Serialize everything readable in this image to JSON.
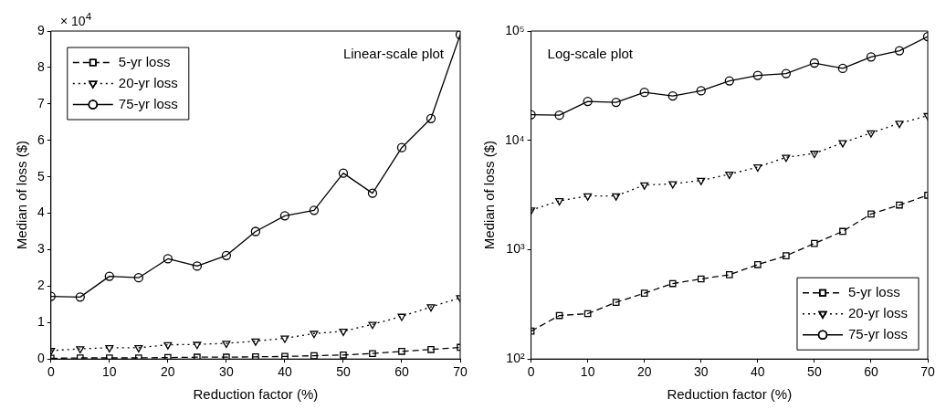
{
  "chart_data": [
    {
      "type": "line",
      "xlabel": "Reduction factor (%)",
      "ylabel": "Median of loss ($)",
      "annotations": [
        "× 10$^{4}$",
        "Linear-scale plot"
      ],
      "x": [
        0,
        5,
        10,
        15,
        20,
        25,
        30,
        35,
        40,
        45,
        50,
        55,
        60,
        65,
        70
      ],
      "series": [
        {
          "name": "5-yr loss",
          "color": "#000000",
          "marker": "square",
          "line_style": "dashed",
          "values": [
            0.02,
            0.03,
            0.03,
            0.03,
            0.04,
            0.05,
            0.05,
            0.06,
            0.07,
            0.09,
            0.11,
            0.15,
            0.21,
            0.26,
            0.32
          ]
        },
        {
          "name": "20-yr loss",
          "color": "#000000",
          "marker": "triangle",
          "line_style": "dotted",
          "values": [
            0.23,
            0.28,
            0.31,
            0.31,
            0.39,
            0.4,
            0.43,
            0.49,
            0.57,
            0.7,
            0.76,
            0.95,
            1.17,
            1.43,
            1.68
          ]
        },
        {
          "name": "75-yr loss",
          "color": "#000000",
          "marker": "circle",
          "line_style": "solid",
          "values": [
            1.72,
            1.7,
            2.27,
            2.23,
            2.75,
            2.55,
            2.84,
            3.5,
            3.93,
            4.08,
            5.1,
            4.55,
            5.8,
            6.6,
            8.9
          ]
        }
      ],
      "xlim": [
        0,
        70
      ],
      "xticks": [
        0,
        10,
        20,
        30,
        40,
        50,
        60,
        70
      ],
      "ylim": [
        0,
        9
      ],
      "yticks": [
        0,
        1,
        2,
        3,
        4,
        5,
        6,
        7,
        8,
        9
      ],
      "grid": false,
      "legend": "top left"
    },
    {
      "type": "line",
      "xlabel": "Reduction factor (%)",
      "ylabel": "Median of loss ($)",
      "annotations": [
        "Log-scale plot"
      ],
      "x": [
        0,
        5,
        10,
        15,
        20,
        25,
        30,
        35,
        40,
        45,
        50,
        55,
        60,
        65,
        70
      ],
      "series": [
        {
          "name": "5-yr loss",
          "color": "#000000",
          "marker": "square",
          "line_style": "dashed",
          "values": [
            180,
            250,
            260,
            330,
            400,
            490,
            540,
            590,
            730,
            880,
            1140,
            1470,
            2120,
            2560,
            3150
          ]
        },
        {
          "name": "20-yr loss",
          "color": "#000000",
          "marker": "triangle",
          "line_style": "dotted",
          "values": [
            2300,
            2800,
            3100,
            3100,
            3900,
            4000,
            4300,
            4900,
            5700,
            7000,
            7600,
            9500,
            11700,
            14300,
            16800
          ]
        },
        {
          "name": "75-yr loss",
          "color": "#000000",
          "marker": "circle",
          "line_style": "solid",
          "values": [
            17200,
            17000,
            22700,
            22300,
            27500,
            25500,
            28400,
            35000,
            39300,
            40800,
            51000,
            45500,
            58000,
            66000,
            89000
          ]
        }
      ],
      "xlim": [
        0,
        70
      ],
      "xticks": [
        0,
        10,
        20,
        30,
        40,
        50,
        60,
        70
      ],
      "ylim": [
        100,
        100000
      ],
      "yticks": [
        {
          "value": 100,
          "label": "10²"
        },
        {
          "value": 1000,
          "label": "10³"
        },
        {
          "value": 10000,
          "label": "10⁴"
        },
        {
          "value": 100000,
          "label": "10⁵"
        }
      ],
      "log": "y",
      "grid": false,
      "legend": "bottom right"
    }
  ]
}
